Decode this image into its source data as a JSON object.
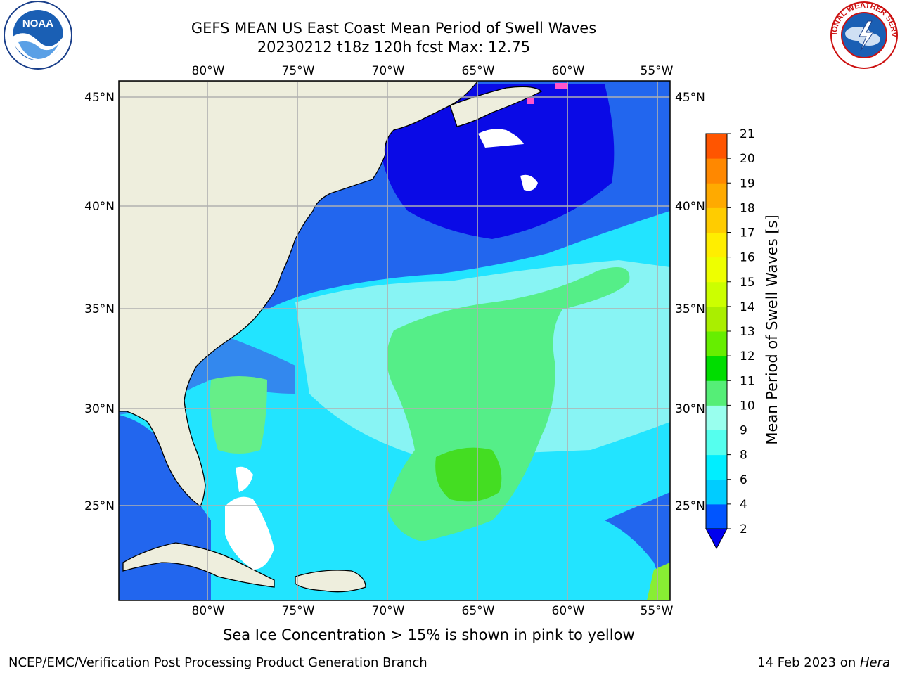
{
  "title": {
    "line1": "GEFS MEAN US East Coast Mean Period of Swell Waves",
    "line2": "20230212 t18z 120h fcst   Max: 12.75"
  },
  "logos": {
    "left": {
      "icon": "noaa-logo-icon",
      "text": "NOAA"
    },
    "right": {
      "icon": "nws-logo-icon",
      "text": "NATIONAL WEATHER SERVICE"
    }
  },
  "map": {
    "lon_ticks": [
      "80°W",
      "75°W",
      "70°W",
      "65°W",
      "60°W",
      "55°W"
    ],
    "lat_ticks": [
      "45°N",
      "40°N",
      "35°N",
      "30°N",
      "25°N"
    ],
    "extent": {
      "lon_min": -85,
      "lon_max": -54.4,
      "lat_min": 20.5,
      "lat_max": 45.8
    },
    "colors": {
      "land": "#eeeedd",
      "grid": "#b0b0b0",
      "sea_ice": "#ff55cc"
    }
  },
  "colorbar": {
    "label": "Mean Period of Swell Waves [s]",
    "ticks": [
      "21",
      "20",
      "19",
      "18",
      "17",
      "16",
      "15",
      "14",
      "13",
      "12",
      "11",
      "10",
      "9",
      "8",
      "6",
      "4",
      "2"
    ],
    "bins": [
      {
        "color": "#0055ff"
      },
      {
        "color": "#00ccff"
      },
      {
        "color": "#00eeff"
      },
      {
        "color": "#55ffee"
      },
      {
        "color": "#99ffee"
      },
      {
        "color": "#55ee77"
      },
      {
        "color": "#00dd00"
      },
      {
        "color": "#66ee00"
      },
      {
        "color": "#aaee00"
      },
      {
        "color": "#ccff00"
      },
      {
        "color": "#eeff00"
      },
      {
        "color": "#ffee00"
      },
      {
        "color": "#ffcc00"
      },
      {
        "color": "#ffaa00"
      },
      {
        "color": "#ff8800"
      },
      {
        "color": "#ff5500"
      },
      {
        "color": "#ff2200"
      },
      {
        "color": "#ff0000"
      }
    ],
    "under_color": "#0000ee"
  },
  "note": "Sea Ice Concentration > 15% is shown in pink to yellow",
  "footer": {
    "left": "NCEP/EMC/Verification Post Processing Product Generation Branch",
    "right_prefix": "14 Feb 2023 on ",
    "right_host": "Hera"
  }
}
